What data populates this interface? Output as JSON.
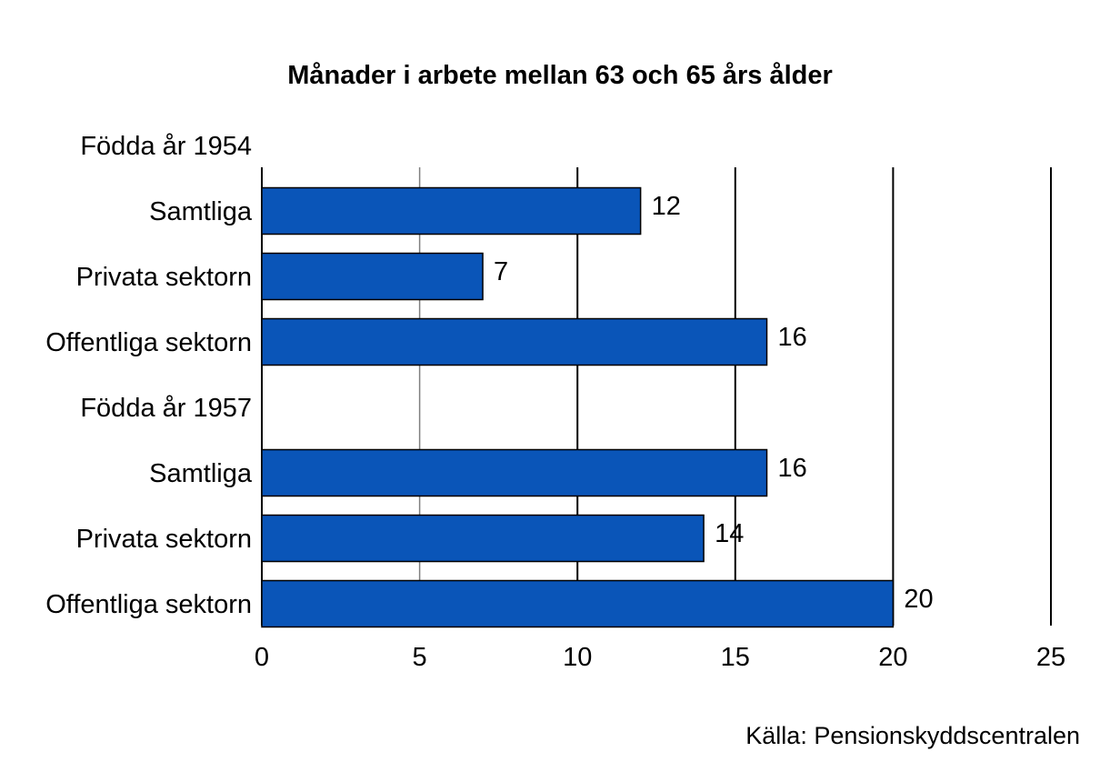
{
  "chart_data": {
    "type": "bar",
    "orientation": "horizontal",
    "title": "Månader i arbete mellan 63 och 65 års ålder",
    "source": "Källa: Pensionskyddscentralen",
    "xlim": [
      0,
      25
    ],
    "xticks": [
      "0",
      "5",
      "10",
      "15",
      "20",
      "25"
    ],
    "grid": true,
    "bar_color": "#0A55B8",
    "groups": [
      {
        "label": "Födda år 1954",
        "bars": [
          {
            "category": "Samtliga",
            "value": 12
          },
          {
            "category": "Privata sektorn",
            "value": 7
          },
          {
            "category": "Offentliga sektorn",
            "value": 16
          }
        ]
      },
      {
        "label": "Födda år 1957",
        "bars": [
          {
            "category": "Samtliga",
            "value": 16
          },
          {
            "category": "Privata sektorn",
            "value": 14
          },
          {
            "category": "Offentliga sektorn",
            "value": 20
          }
        ]
      }
    ]
  }
}
